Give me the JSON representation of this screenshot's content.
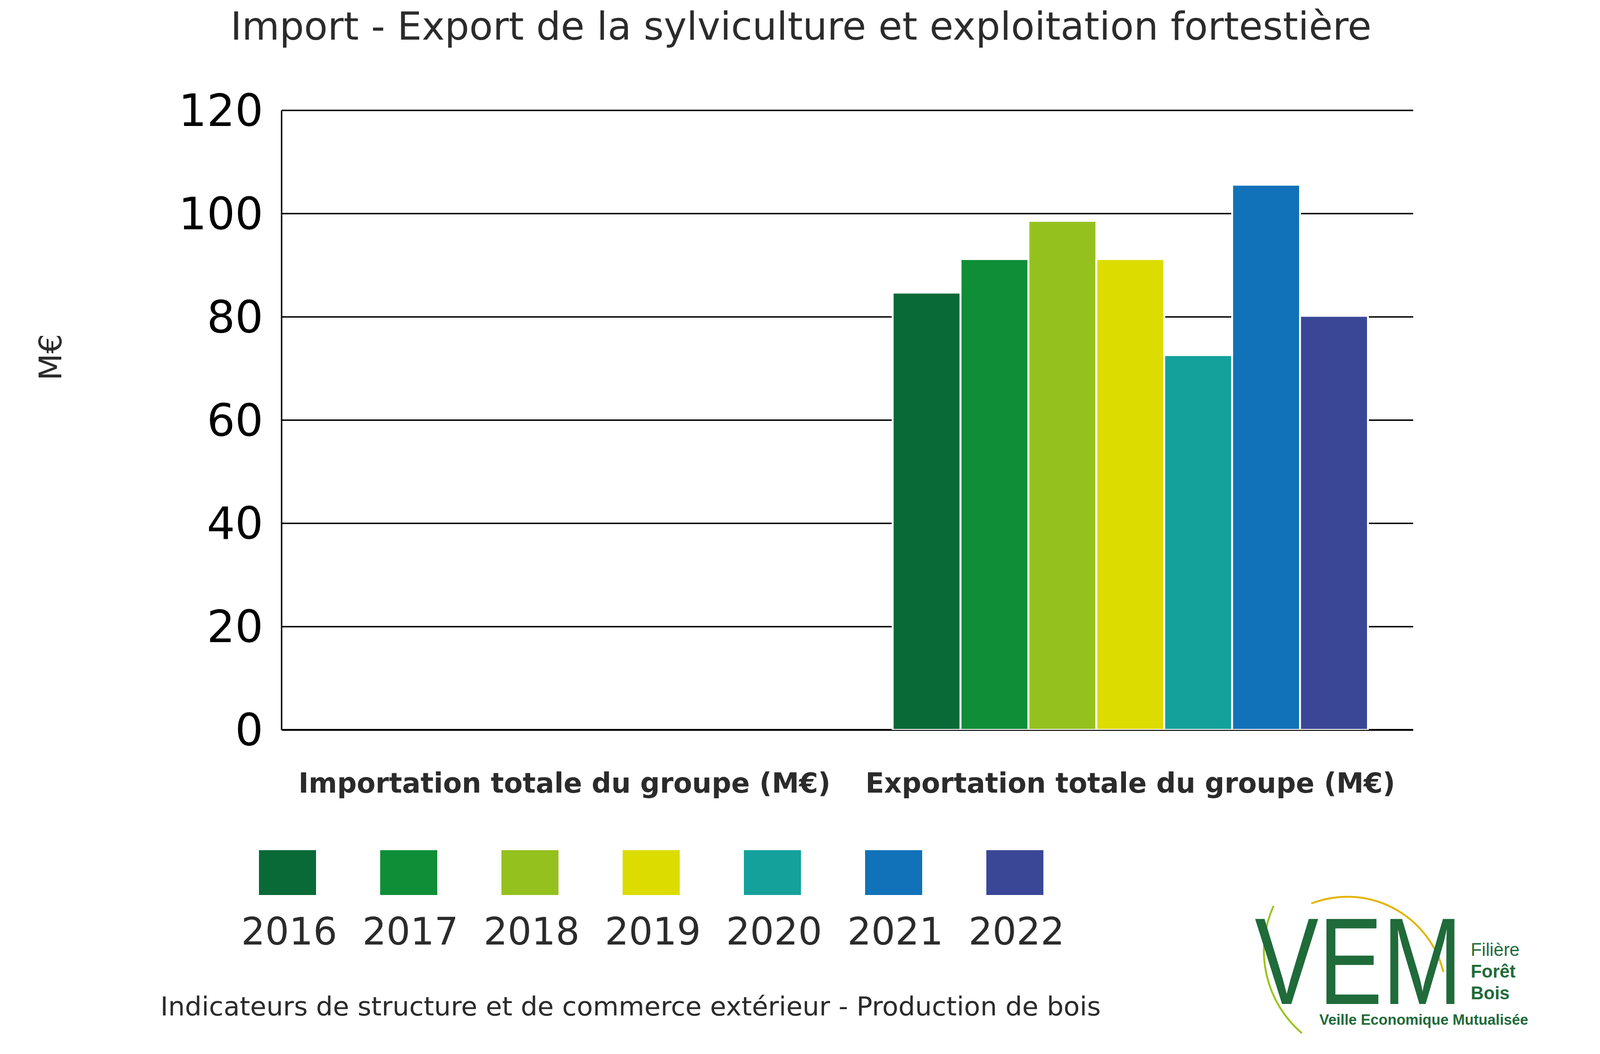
{
  "chart_data": {
    "type": "bar",
    "title": "Import - Export de la sylviculture et exploitation fortestière",
    "y_label": "M€",
    "categories": [
      "Importation totale du groupe (M€)",
      "Exportation totale du groupe (M€)"
    ],
    "series": [
      {
        "name": "2016",
        "color": "#096937",
        "values": [
          null,
          84.7
        ]
      },
      {
        "name": "2017",
        "color": "#0f8e37",
        "values": [
          null,
          91.2
        ]
      },
      {
        "name": "2018",
        "color": "#95c11f",
        "values": [
          null,
          98.6
        ]
      },
      {
        "name": "2019",
        "color": "#dcdc00",
        "values": [
          null,
          91.2
        ]
      },
      {
        "name": "2020",
        "color": "#14a19b",
        "values": [
          null,
          72.6
        ]
      },
      {
        "name": "2021",
        "color": "#1172b9",
        "values": [
          null,
          105.6
        ]
      },
      {
        "name": "2022",
        "color": "#3a4797",
        "values": [
          null,
          80.2
        ]
      }
    ],
    "ylim": [
      0,
      120
    ],
    "yticks": [
      0,
      20,
      40,
      60,
      80,
      100,
      120
    ],
    "grid": true,
    "footer": "Indicateurs de structure et de commerce extérieur - Production de bois",
    "logo": {
      "name": "VEM",
      "line1": "Filière",
      "line2": "Forêt",
      "line3": "Bois",
      "tagline": "Veille Economique Mutualisée"
    }
  }
}
